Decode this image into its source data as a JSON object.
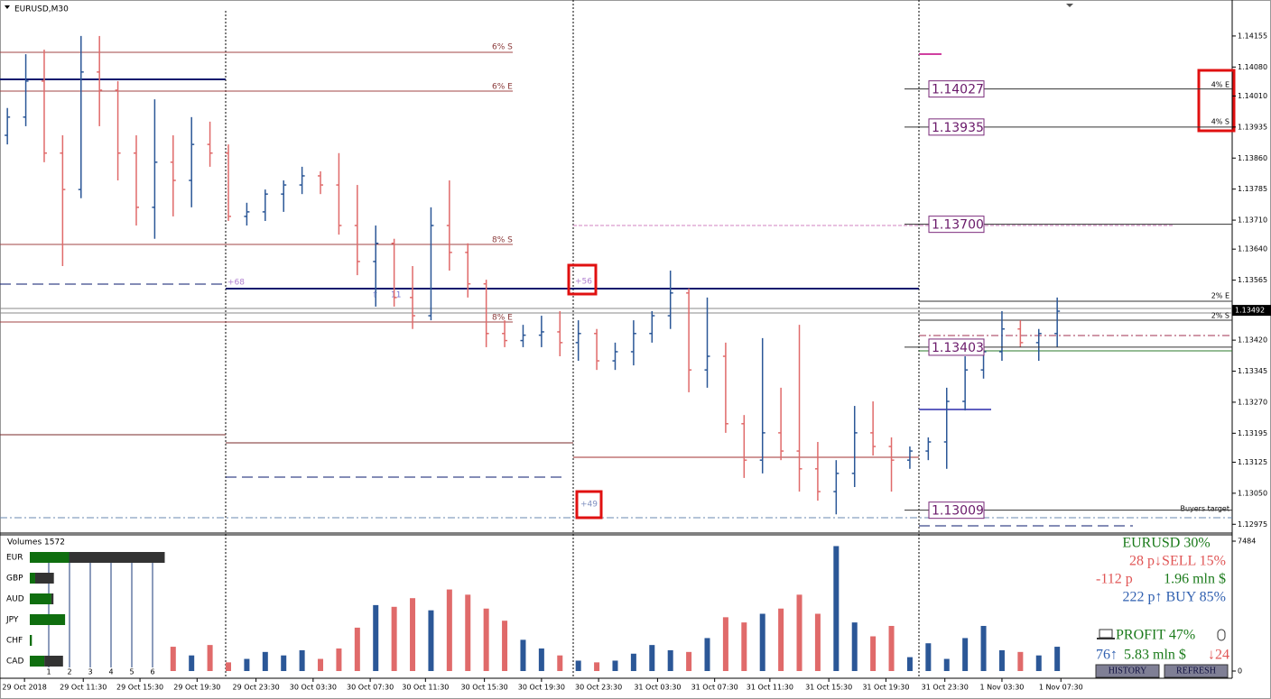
{
  "chart_data": [
    {
      "type": "ohlc",
      "title": "EURUSD,M30",
      "open": [
        1.13915,
        1.13959,
        1.14046,
        1.13872,
        1.13784,
        1.14068,
        1.14024,
        1.13872,
        1.13741,
        1.1385,
        1.13806,
        1.13893,
        1.13872,
        1.13719,
        1.1373,
        1.13773,
        1.13795,
        1.13817,
        1.13795,
        1.13697,
        1.1361,
        1.13654,
        1.13523,
        1.13479,
        1.13697,
        1.13632,
        1.13556,
        1.13436,
        1.13419,
        1.13432,
        1.1344,
        1.13414,
        1.13436,
        1.1337,
        1.13392,
        1.13436,
        1.13479,
        1.13534,
        1.13348,
        1.13381,
        1.13218,
        1.1313,
        1.13196,
        1.13152,
        1.13109,
        1.13054,
        1.13098,
        1.13196,
        1.13163,
        1.1313,
        1.13152,
        1.13174,
        1.13272,
        1.13348,
        1.13392,
        1.13447,
        1.13414,
        1.13436
      ],
      "high": [
        1.13981,
        1.14111,
        1.14122,
        1.13915,
        1.14155,
        1.14155,
        1.14046,
        1.13915,
        1.14002,
        1.13915,
        1.13959,
        1.13948,
        1.13893,
        1.13752,
        1.13784,
        1.13806,
        1.13839,
        1.13828,
        1.13872,
        1.13795,
        1.13697,
        1.13665,
        1.13599,
        1.13741,
        1.13806,
        1.13654,
        1.13566,
        1.13468,
        1.13457,
        1.13479,
        1.1349,
        1.13468,
        1.13447,
        1.13414,
        1.13468,
        1.1349,
        1.13588,
        1.13545,
        1.13523,
        1.13414,
        1.13239,
        1.13425,
        1.13305,
        1.13457,
        1.13174,
        1.1313,
        1.13261,
        1.13272,
        1.13185,
        1.13163,
        1.13185,
        1.13305,
        1.13381,
        1.13414,
        1.1349,
        1.13468,
        1.13447,
        1.13523
      ],
      "low": [
        1.13893,
        1.13937,
        1.1385,
        1.13599,
        1.13763,
        1.13937,
        1.13806,
        1.13697,
        1.13665,
        1.13719,
        1.13741,
        1.13839,
        1.13708,
        1.13697,
        1.13708,
        1.1373,
        1.13773,
        1.13773,
        1.13675,
        1.13577,
        1.13501,
        1.13501,
        1.13447,
        1.13468,
        1.13588,
        1.13523,
        1.13403,
        1.13403,
        1.13403,
        1.13403,
        1.13381,
        1.1337,
        1.13348,
        1.13348,
        1.13359,
        1.13414,
        1.13447,
        1.13294,
        1.13305,
        1.13196,
        1.13087,
        1.13098,
        1.1313,
        1.13054,
        1.13032,
        1.12999,
        1.13065,
        1.13141,
        1.13054,
        1.13109,
        1.1313,
        1.13109,
        1.1325,
        1.13327,
        1.1337,
        1.13403,
        1.1337,
        1.13403
      ],
      "close": [
        1.13959,
        1.14046,
        1.13872,
        1.13784,
        1.14068,
        1.14024,
        1.13872,
        1.13741,
        1.1385,
        1.13806,
        1.13893,
        1.13872,
        1.13719,
        1.1373,
        1.13773,
        1.13795,
        1.13817,
        1.13795,
        1.13697,
        1.1361,
        1.13654,
        1.13523,
        1.13479,
        1.13697,
        1.13632,
        1.13556,
        1.13436,
        1.13419,
        1.13432,
        1.1344,
        1.13414,
        1.13436,
        1.1337,
        1.13392,
        1.13436,
        1.13479,
        1.13534,
        1.13348,
        1.13381,
        1.13218,
        1.1313,
        1.13196,
        1.13152,
        1.13109,
        1.13054,
        1.13098,
        1.13196,
        1.13163,
        1.1313,
        1.13152,
        1.13174,
        1.13272,
        1.13348,
        1.13392,
        1.13447,
        1.13414,
        1.13436,
        1.1349
      ],
      "up_color": "#2b5797",
      "down_color": "#e06a6a",
      "xlim": [
        -0.4,
        66.5
      ],
      "ylim": [
        1.12956,
        1.14242
      ],
      "yticks": [
        1.14155,
        {
          "value": 1.1408,
          "label": "1.14080"
        },
        {
          "value": 1.1401,
          "label": "1.14010"
        },
        1.13935,
        {
          "value": 1.1386,
          "label": "1.13860"
        },
        1.13785,
        {
          "value": 1.1371,
          "label": "1.13710"
        },
        {
          "value": 1.1364,
          "label": "1.13640"
        },
        1.13565,
        {
          "value": 1.1342,
          "label": "1.13420"
        },
        1.13345,
        {
          "value": 1.1327,
          "label": "1.13270"
        },
        1.13195,
        1.13125,
        {
          "value": 1.1305,
          "label": "1.13050"
        },
        1.12975
      ],
      "xticks": [
        {
          "value": 0.93,
          "label": "29 Oct 2018"
        },
        {
          "value": 4.12,
          "label": "29 Oct 11:30"
        },
        {
          "value": 7.2,
          "label": "29 Oct 15:30"
        },
        {
          "value": 10.3,
          "label": "29 Oct 19:30"
        },
        {
          "value": 13.5,
          "label": "29 Oct 23:30"
        },
        {
          "value": 16.6,
          "label": "30 Oct 03:30"
        },
        {
          "value": 19.7,
          "label": "30 Oct 07:30"
        },
        {
          "value": 22.7,
          "label": "30 Oct 11:30"
        },
        {
          "value": 25.9,
          "label": "30 Oct 15:30"
        },
        {
          "value": 29.0,
          "label": "30 Oct 19:30"
        },
        {
          "value": 32.1,
          "label": "30 Oct 23:30"
        },
        {
          "value": 35.3,
          "label": "31 Oct 03:30"
        },
        {
          "value": 38.4,
          "label": "31 Oct 07:30"
        },
        {
          "value": 41.4,
          "label": "31 Oct 11:30"
        },
        {
          "value": 44.6,
          "label": "31 Oct 15:30"
        },
        {
          "value": 47.7,
          "label": "31 Oct 19:30"
        },
        {
          "value": 50.9,
          "label": "31 Oct 23:30"
        },
        {
          "value": 54.0,
          "label": "1 Nov 03:30"
        },
        {
          "value": 57.2,
          "label": "1 Nov 07:30"
        }
      ],
      "last": 1.13492,
      "levels": [
        1.14027,
        1.13935,
        {
          "value": 1.137,
          "label": "1.13700"
        },
        1.13403,
        1.13009
      ]
    },
    {
      "type": "bar",
      "title": "Volumes 1572",
      "values": [
        null,
        null,
        null,
        null,
        null,
        null,
        null,
        null,
        null,
        1400,
        900,
        1500,
        500,
        700,
        1100,
        900,
        1200,
        700,
        1300,
        2500,
        3800,
        3700,
        4200,
        3500,
        4700,
        4400,
        3600,
        2900,
        1800,
        1300,
        900,
        600,
        500,
        600,
        1000,
        1500,
        1200,
        1100,
        1900,
        3100,
        2800,
        3300,
        3600,
        4400,
        3300,
        7200,
        2800,
        2000,
        2600,
        800,
        1600,
        700,
        1900,
        2600,
        1200,
        1100,
        900,
        1400
      ],
      "xlim": [
        -0.4,
        66.5
      ],
      "ylim": [
        0,
        7484
      ],
      "yticks": [
        0,
        7484
      ]
    }
  ],
  "annotations": {
    "s6": "6% S",
    "e6": "6% E",
    "s8": "8% S",
    "e8": "8% E",
    "p68": "+68",
    "n11": "11",
    "p56": "+56",
    "p49": "+49",
    "buyers": "Buyers target",
    "e2": "2% E",
    "s2": "2% S",
    "e4": "4% E",
    "s4": "4% S"
  },
  "currency_panel": {
    "scale": [
      1,
      2,
      3,
      4,
      5,
      6
    ],
    "colors": [
      "#0f6e0f",
      "#333333"
    ],
    "currencies": [
      {
        "name": "EUR",
        "values": [
          1.9,
          4.6
        ]
      },
      {
        "name": "GBP",
        "values": [
          0.26,
          0.9
        ]
      },
      {
        "name": "AUD",
        "values": [
          1.04,
          0.1
        ]
      },
      {
        "name": "JPY",
        "values": [
          1.7,
          0
        ]
      },
      {
        "name": "CHF",
        "values": [
          0.1,
          0
        ]
      },
      {
        "name": "CAD",
        "values": [
          0.7,
          0.9
        ]
      }
    ]
  },
  "stats_panel": {
    "symbol": "EURUSD 30%",
    "sell": "28 p↓SELL 15%",
    "loss": "-112 p",
    "sell_volume": "1.96 mln $",
    "buy": "222 p↑ BUY 85%",
    "profit": "PROFIT 47%",
    "trades_up": "76↑",
    "buy_volume": "5.83 mln $",
    "trades_down": "↓24",
    "buttons": [
      "HISTORY",
      "REFRESH"
    ]
  }
}
